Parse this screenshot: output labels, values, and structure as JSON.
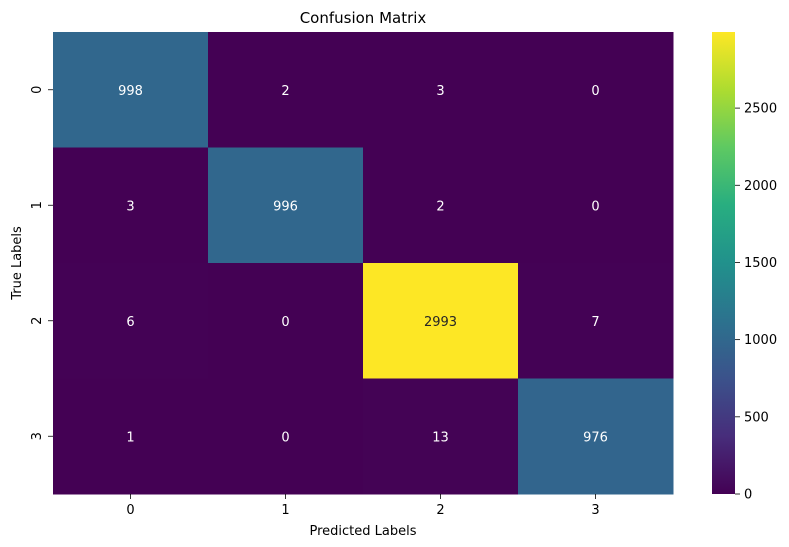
{
  "chart_data": {
    "type": "heatmap",
    "title": "Confusion Matrix",
    "xlabel": "Predicted Labels",
    "ylabel": "True Labels",
    "x_categories": [
      "0",
      "1",
      "2",
      "3"
    ],
    "y_categories": [
      "0",
      "1",
      "2",
      "3"
    ],
    "values": [
      [
        998,
        2,
        3,
        0
      ],
      [
        3,
        996,
        2,
        0
      ],
      [
        6,
        0,
        2993,
        7
      ],
      [
        1,
        0,
        13,
        976
      ]
    ],
    "colormap": "viridis",
    "colorbar": {
      "vmin": 0,
      "vmax": 2993,
      "ticks": [
        0,
        500,
        1000,
        1500,
        2000,
        2500
      ]
    },
    "annotations": true,
    "grid": false,
    "legend": "colorbar-right"
  }
}
